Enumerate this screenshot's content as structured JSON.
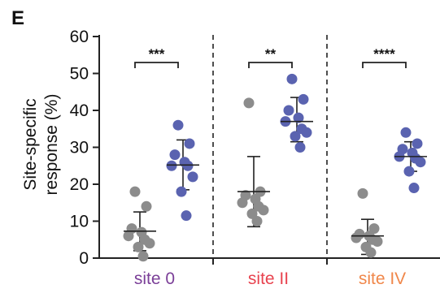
{
  "chart_data": {
    "type": "scatter",
    "panel_label": "E",
    "ylabel_lines": [
      "Site-specific",
      "response  (%)"
    ],
    "ylim": [
      0,
      60
    ],
    "yticks": [
      0,
      10,
      20,
      30,
      40,
      50,
      60
    ],
    "categories": [
      {
        "name": "site 0",
        "color": "#7b3f98"
      },
      {
        "name": "site II",
        "color": "#e8434f"
      },
      {
        "name": "site IV",
        "color": "#f0874a"
      }
    ],
    "series_colors": {
      "grey": "#8c8c8c",
      "blue": "#5a63b0"
    },
    "groups": [
      {
        "category": "site 0",
        "significance": "***",
        "grey": {
          "values": [
            18,
            14,
            8,
            7,
            6,
            5,
            4,
            3,
            0.5
          ],
          "mean": 7.3,
          "sd_low": 2,
          "sd_high": 12.5
        },
        "blue": {
          "values": [
            36,
            31,
            28,
            26,
            25,
            25,
            22,
            18,
            11.5
          ],
          "mean": 25.2,
          "sd_low": 18.5,
          "sd_high": 32
        }
      },
      {
        "category": "site II",
        "significance": "**",
        "grey": {
          "values": [
            42,
            18,
            17,
            16,
            15,
            14,
            13,
            12,
            10
          ],
          "mean": 18,
          "sd_low": 8.5,
          "sd_high": 27.5
        },
        "blue": {
          "values": [
            48.5,
            43,
            40,
            38,
            37,
            35,
            34,
            33,
            30
          ],
          "mean": 37,
          "sd_low": 31.5,
          "sd_high": 43.5
        }
      },
      {
        "category": "site IV",
        "significance": "****",
        "grey": {
          "values": [
            17.5,
            8,
            6.5,
            6,
            5.5,
            5,
            4.5,
            3,
            1.5
          ],
          "mean": 6,
          "sd_low": 1,
          "sd_high": 10.5
        },
        "blue": {
          "values": [
            34,
            31,
            29.5,
            28.5,
            27.5,
            27,
            26,
            23.5,
            19
          ],
          "mean": 27.5,
          "sd_low": 23.5,
          "sd_high": 31.5
        }
      }
    ]
  }
}
